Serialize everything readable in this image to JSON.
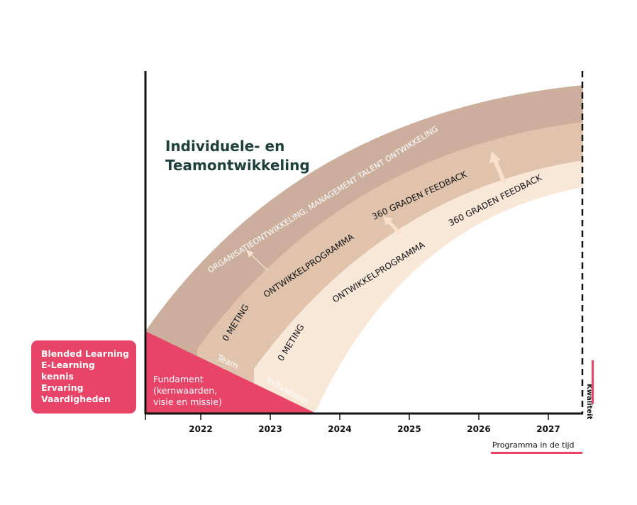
{
  "title": "Individuele- en\nTeamontwikkeling",
  "side_box": {
    "lines": [
      "Blended Learning",
      "E-Learning",
      "kennis",
      "Ervaring",
      "Vaardigheden"
    ]
  },
  "fundament": "Fundament\n(kernwaarden,\nvisie en missie)",
  "bands": {
    "outer": "ORGANISATIEONTWIKKELING, MANAGEMENT TALENT ONTWIKKELING",
    "team": {
      "label": "Team",
      "meting": "0 METING",
      "programma": "ONTWIKKELPROGRAMMA",
      "feedback": "360 GRADEN FEEDBACK"
    },
    "individueel": {
      "label": "Individueel",
      "meting": "0 METING",
      "programma": "ONTWIKKELPROGRAMMA",
      "feedback": "360 GRADEN FEEDBACK"
    }
  },
  "axis": {
    "years": [
      "2022",
      "2023",
      "2024",
      "2025",
      "2026",
      "2027"
    ],
    "x_label": "Programma in de tijd",
    "y_label": "Kwaliteit"
  },
  "colors": {
    "outer_band": "#cbaf9c",
    "team_band": "#dfc3ac",
    "individual_band": "#f9e8d8",
    "accent": "#e84467",
    "title": "#1f3f3a"
  }
}
